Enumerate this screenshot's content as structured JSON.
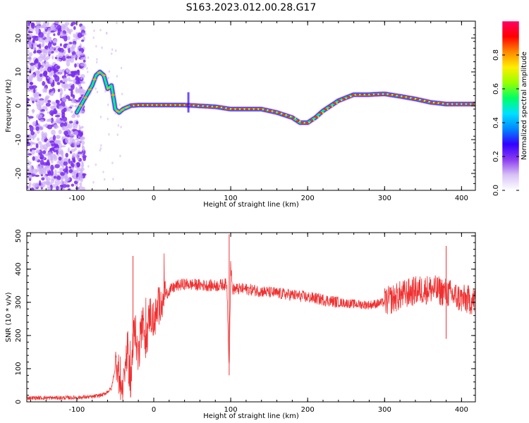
{
  "title": "S163.2023.012.00.28.G17",
  "chart_data": [
    {
      "type": "heatmap",
      "xlabel": "Height of straight line (km)",
      "ylabel": "Frequency (Hz)",
      "xlim": [
        -165,
        418
      ],
      "ylim": [
        -25,
        25
      ],
      "xticks": [
        -100,
        0,
        100,
        200,
        300,
        400
      ],
      "yticks": [
        -20,
        -10,
        0,
        10,
        20
      ],
      "colorbar": {
        "label": "Normalized spectral amplitude",
        "range": [
          0,
          1
        ],
        "ticks": [
          0.0,
          0.2,
          0.4,
          0.6,
          0.8
        ],
        "colors": [
          "#ffffff",
          "#d8c2f5",
          "#8a3cf0",
          "#3300ff",
          "#0088ff",
          "#00e0ff",
          "#00ff66",
          "#99ff00",
          "#ffee00",
          "#ff8800",
          "#ff0000",
          "#ff0066"
        ]
      },
      "ridge": {
        "x": [
          -100,
          -90,
          -80,
          -75,
          -70,
          -65,
          -60,
          -55,
          -50,
          -45,
          -40,
          -30,
          -20,
          0,
          40,
          80,
          100,
          120,
          140,
          160,
          180,
          190,
          200,
          210,
          220,
          240,
          260,
          280,
          300,
          320,
          340,
          360,
          380,
          400,
          418
        ],
        "y": [
          -2,
          2,
          6,
          9,
          10,
          9,
          5,
          6,
          -1,
          -2,
          -1,
          0,
          0.2,
          0.2,
          0.2,
          -0.3,
          -1,
          -1,
          -1,
          -2,
          -3.5,
          -5,
          -5,
          -3.5,
          -1.5,
          1.5,
          3.3,
          3.3,
          3.5,
          2.8,
          2,
          1,
          0.5,
          0.5,
          0.5
        ]
      },
      "noise_region_x": [
        -165,
        -100
      ]
    },
    {
      "type": "line",
      "xlabel": "Height of straight line (km)",
      "ylabel": "SNR (10 * v/v)",
      "xlim": [
        -165,
        418
      ],
      "ylim": [
        0,
        510
      ],
      "xticks": [
        -100,
        0,
        100,
        200,
        300,
        400
      ],
      "yticks": [
        0,
        100,
        200,
        300,
        400,
        500
      ],
      "color": "#f03030",
      "x": [
        -165,
        -140,
        -120,
        -100,
        -80,
        -65,
        -55,
        -48,
        -44,
        -40,
        -35,
        -30,
        -25,
        -20,
        -15,
        -10,
        -5,
        0,
        10,
        20,
        30,
        40,
        60,
        80,
        95,
        98,
        100,
        102,
        120,
        150,
        180,
        210,
        240,
        260,
        280,
        300,
        320,
        340,
        360,
        380,
        400,
        418
      ],
      "y": [
        12,
        12,
        12,
        13,
        15,
        22,
        40,
        130,
        60,
        20,
        160,
        60,
        230,
        130,
        250,
        180,
        270,
        240,
        310,
        335,
        350,
        355,
        352,
        350,
        355,
        100,
        420,
        340,
        340,
        330,
        322,
        312,
        300,
        295,
        292,
        300,
        320,
        335,
        340,
        330,
        310,
        305
      ],
      "spikes": [
        {
          "x": -27,
          "y": 440
        },
        {
          "x": 98,
          "y": 505
        },
        {
          "x": 98,
          "y": 80
        },
        {
          "x": 380,
          "y": 470
        },
        {
          "x": 380,
          "y": 190
        }
      ]
    }
  ]
}
